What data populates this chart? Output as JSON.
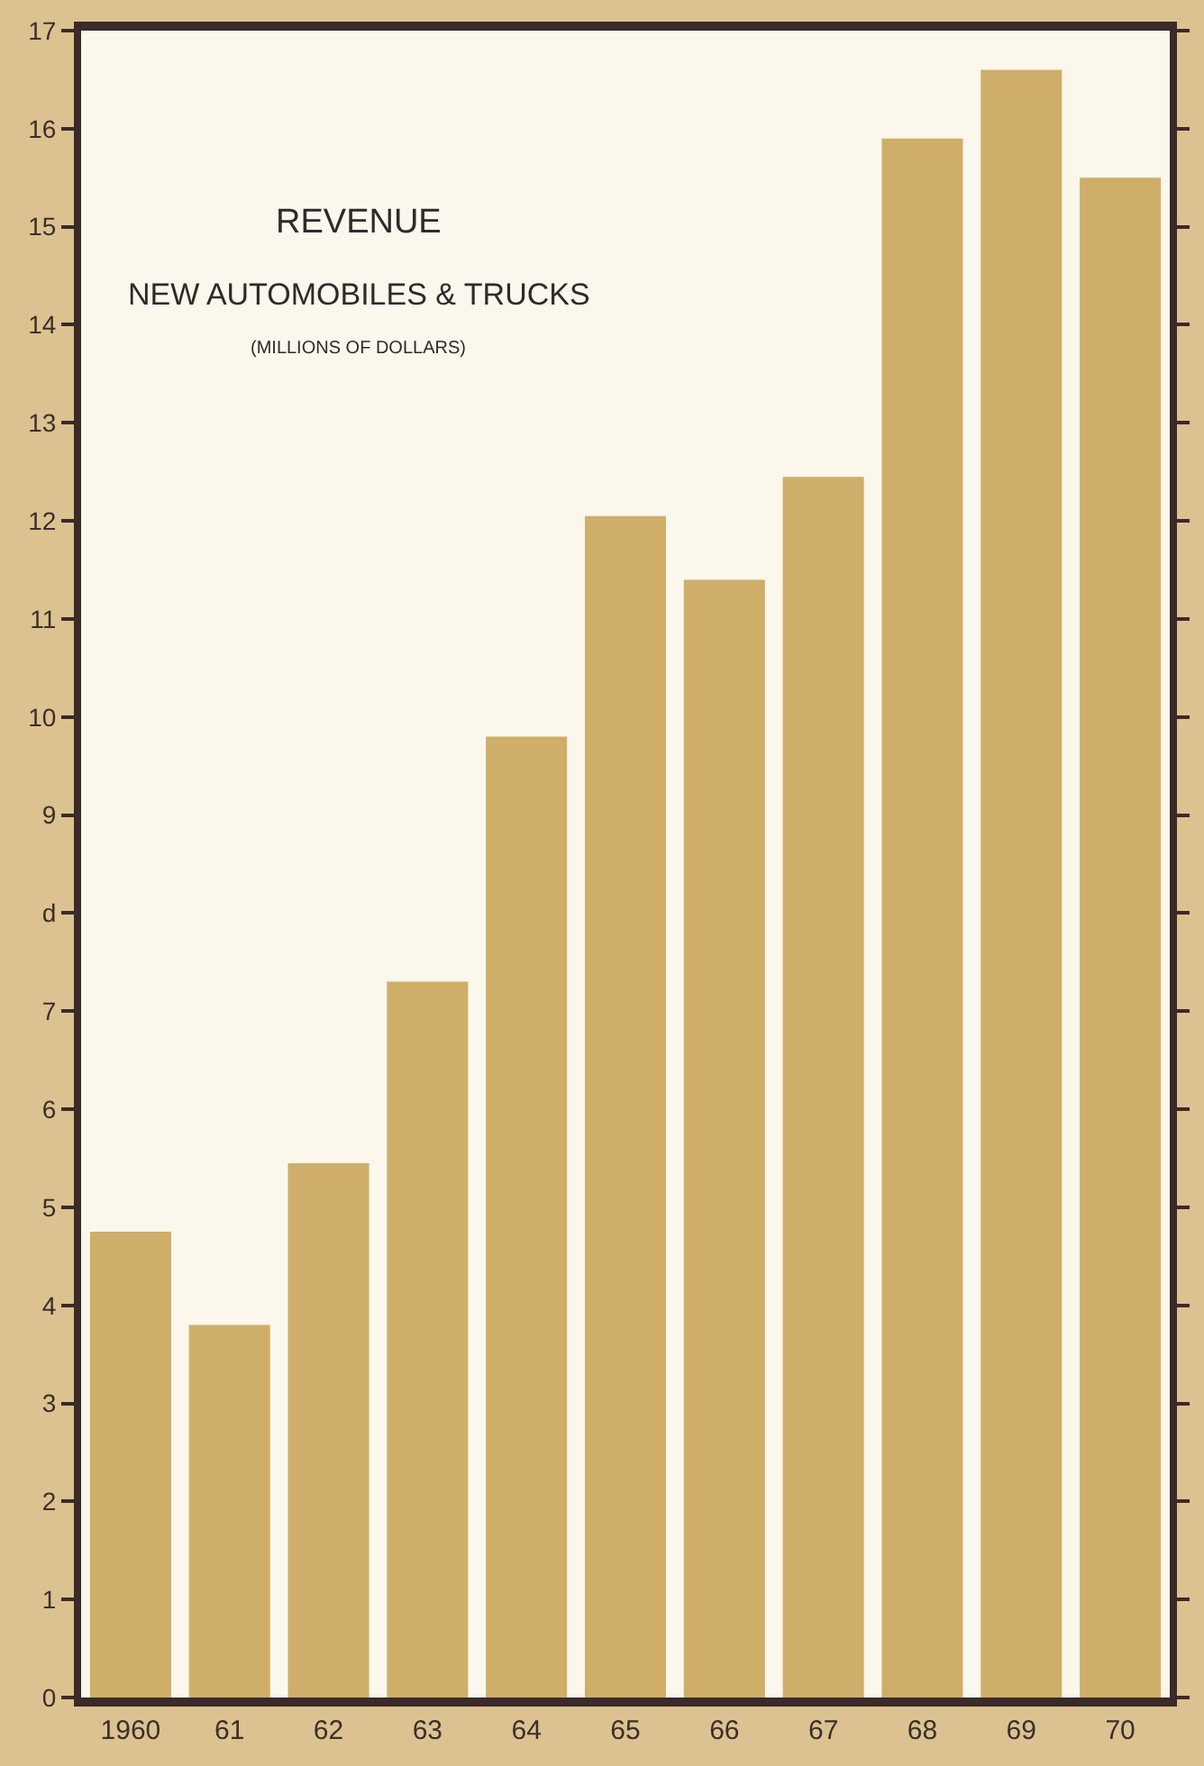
{
  "chart_data": {
    "type": "bar",
    "title": "REVENUE",
    "subtitle": "NEW AUTOMOBILES & TRUCKS",
    "ylabel": "(MILLIONS OF DOLLARS)",
    "categories": [
      "1960",
      "61",
      "62",
      "63",
      "64",
      "65",
      "66",
      "67",
      "68",
      "69",
      "70"
    ],
    "values": [
      4.75,
      3.8,
      5.45,
      7.3,
      9.8,
      12.05,
      11.4,
      12.45,
      15.9,
      16.6,
      15.5
    ],
    "color": "#cfae6a",
    "ylim": [
      0,
      17
    ],
    "yticks": [
      0,
      1,
      2,
      3,
      4,
      5,
      6,
      7,
      {
        "value": 8,
        "label": "d"
      },
      9,
      10,
      11,
      12,
      13,
      14,
      15,
      16,
      17
    ],
    "grid": false
  }
}
